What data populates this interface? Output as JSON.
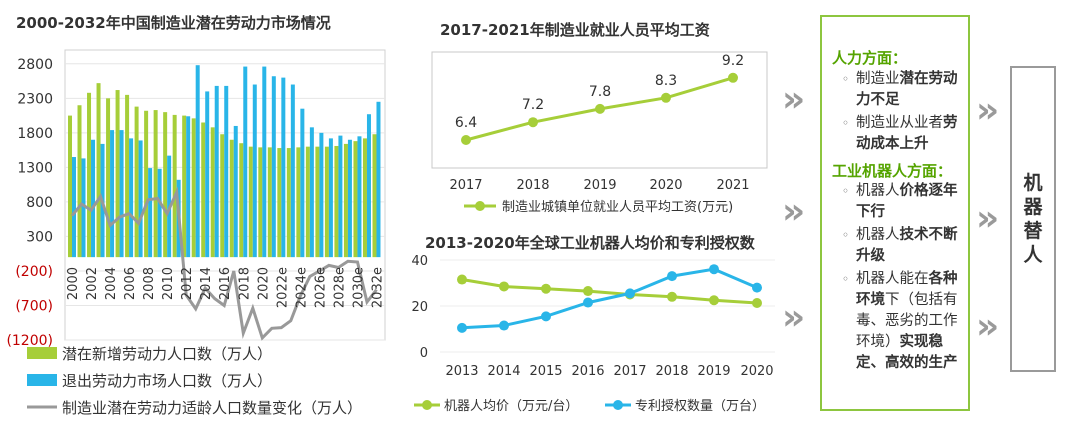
{
  "chart1": {
    "title": "2000-2032年中国制造业潜在劳动力市场情况",
    "y_ticks": [
      "2800",
      "2300",
      "1800",
      "1300",
      "800",
      "300",
      "(200)",
      "(700)",
      "(1200)"
    ],
    "chart_data": {
      "type": "bar",
      "categories": [
        "2000",
        "2001",
        "2002",
        "2003",
        "2004",
        "2005",
        "2006",
        "2007",
        "2008",
        "2009",
        "2010",
        "2011",
        "2012",
        "2013",
        "2014",
        "2015",
        "2016",
        "2017",
        "2018",
        "2019",
        "2020",
        "2021",
        "2022e",
        "2023e",
        "2024e",
        "2025e",
        "2026e",
        "2027e",
        "2028e",
        "2029e",
        "2030e",
        "2031e",
        "2032e"
      ],
      "ylim": [
        -1200,
        3000
      ],
      "series": [
        {
          "name": "潜在新增劳动力人口数（万人）",
          "type": "bar",
          "color": "#a6ce39",
          "values": [
            2050,
            2200,
            2380,
            2520,
            2300,
            2420,
            2350,
            2180,
            2120,
            2130,
            2100,
            2060,
            2050,
            2010,
            1950,
            1880,
            1780,
            1700,
            1650,
            1600,
            1590,
            1590,
            1580,
            1580,
            1590,
            1600,
            1600,
            1600,
            1610,
            1640,
            1680,
            1720,
            1780
          ]
        },
        {
          "name": "退出劳动力市场人口数（万人）",
          "type": "bar",
          "color": "#29b5e8",
          "values": [
            1450,
            1430,
            1700,
            1640,
            1840,
            1840,
            1720,
            1690,
            1290,
            1280,
            1470,
            1120,
            2040,
            2780,
            2400,
            2480,
            2480,
            1900,
            2760,
            2500,
            2760,
            2620,
            2600,
            2500,
            2150,
            1880,
            1800,
            1720,
            1760,
            1700,
            1750,
            2070,
            2250
          ]
        },
        {
          "name": "制造业潜在劳动力适龄人口数量变化（万人）",
          "type": "line",
          "color": "#999999",
          "values": [
            600,
            770,
            680,
            880,
            460,
            580,
            630,
            490,
            830,
            850,
            630,
            940,
            -550,
            -750,
            -450,
            -600,
            -700,
            -200,
            -1100,
            -740,
            -1170,
            -1030,
            -1020,
            -920,
            -560,
            -280,
            -200,
            -120,
            -150,
            -60,
            -70,
            -650,
            -470
          ]
        }
      ],
      "legend": [
        "潜在新增劳动力人口数（万人）",
        "退出劳动力市场人口数（万人）",
        "制造业潜在劳动力适龄人口数量变化（万人）"
      ]
    }
  },
  "chart2": {
    "title": "2017-2021年制造业就业人员平均工资",
    "legend": "制造业城镇单位就业人员平均工资(万元)",
    "chart_data": {
      "type": "line",
      "categories": [
        "2017",
        "2018",
        "2019",
        "2020",
        "2021"
      ],
      "values": [
        6.4,
        7.2,
        7.8,
        8.3,
        9.2
      ],
      "labels": [
        "6.4",
        "7.2",
        "7.8",
        "8.3",
        "9.2"
      ],
      "color": "#a6ce39"
    }
  },
  "chart3": {
    "title": "2013-2020年全球工业机器人均价和专利授权数",
    "y_ticks": [
      "40",
      "20",
      "0"
    ],
    "chart_data": {
      "type": "line",
      "categories": [
        "2013",
        "2014",
        "2015",
        "2016",
        "2017",
        "2018",
        "2019",
        "2020"
      ],
      "ylim": [
        0,
        40
      ],
      "series": [
        {
          "name": "机器人均价（万元/台）",
          "color": "#a6ce39",
          "values": [
            31.5,
            28.5,
            27.5,
            26.5,
            25,
            24,
            22.5,
            21.3
          ]
        },
        {
          "name": "专利授权数量（万台）",
          "color": "#29b5e8",
          "values": [
            10.5,
            11.5,
            15.5,
            21.5,
            25.5,
            33,
            36,
            28
          ]
        }
      ]
    }
  },
  "panel": {
    "heading1": "人力方面：",
    "bullets1": [
      [
        "制造业",
        "潜在劳动力不足"
      ],
      [
        "制造业从业者",
        "劳动成本上升"
      ]
    ],
    "heading2": "工业机器人方面：",
    "bullets2": [
      [
        "机器人",
        "价格逐年下行"
      ],
      [
        "机器人",
        "技术不断升级"
      ],
      [
        "机器人能在",
        "各种环境",
        "下（包括有毒、恶劣的工作环境）",
        "实现稳定、高效的生产"
      ]
    ]
  },
  "result": {
    "label": "机器替人"
  },
  "arrow_glyph": "»"
}
